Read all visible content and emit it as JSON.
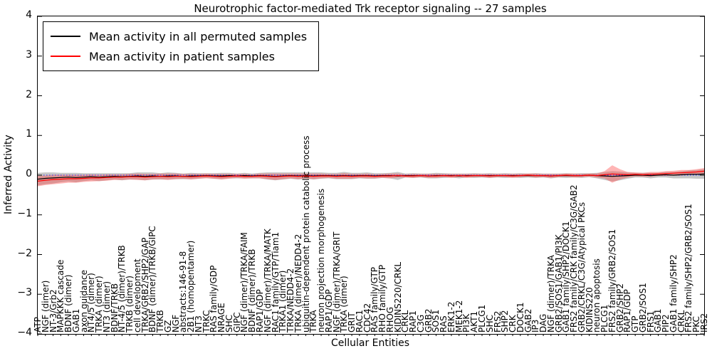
{
  "legend": {
    "entries": [
      {
        "label": "Mean activity in all permuted samples",
        "color": "#000000"
      },
      {
        "label": "Mean activity in patient samples",
        "color": "#ff0000"
      }
    ]
  },
  "chart_data": {
    "type": "line",
    "title": "Neurotrophic factor-mediated Trk receptor signaling -- 27 samples",
    "xlabel": "Cellular Entities",
    "ylabel": "Inferred Activity",
    "ylim": [
      -4,
      4
    ],
    "yticks": [
      4,
      3,
      2,
      1,
      0,
      -1,
      -2,
      -3,
      -4
    ],
    "yticklabels": [
      "4",
      "3",
      "2",
      "1",
      "0",
      "−1",
      "−2",
      "−3",
      "−4"
    ],
    "grid": false,
    "legend_position": "upper left",
    "zero_line": {
      "y": 0,
      "color": "#3333ff",
      "style": "dotted"
    },
    "categories": [
      "ATP",
      "NGF (dimer)",
      "NT-3/Grb2",
      "MAPKKK cascade",
      "BDNF (dimer)",
      "GAB1",
      "axon guidance",
      "NT4/5 (dimer)",
      "TRKA (dimer)",
      "NT3 (dimer)",
      "BDNF/TRKB",
      "NT-4/5 (dimer)/TRKB",
      "TRKB (dimer)",
      "cell development",
      "TRKA/GRB2/SHP2/GAP",
      "BDNF (dimer)/TRKB/GIPC",
      "TRKB",
      "GZ",
      "NGF",
      "abstracts:146-91-8",
      "2B1 (homopentamer)",
      "NT3",
      "TRKC",
      "RAS family/GDP",
      "NRAGE",
      "SHC",
      "GIPC",
      "NGF (dimer)/TRKA/FAIM",
      "BDNF (dimer)/TRKB",
      "RAP1/GDP",
      "NGF (dimer)/TRKA/MATK",
      "RAC1 family/GTP/Tiam1",
      "TRKA1 (dimer)",
      "TRKA/NEDD4-2",
      "TRKA (dimer)/NEDD4-2",
      "ubiquitin-dependent protein catabolic process",
      "TRKA",
      "neuron projection morphogenesis",
      "RAP1/GDP",
      "NGF (dimer)/TRKA/GRIT",
      "TRKA (dimer)",
      "GRIT",
      "RAC1",
      "CDC42",
      "RAS family/GTP",
      "RHO family/GTP",
      "RHOG",
      "KIDINS220/CRKL",
      "CRKL",
      "RAP1",
      "C3G",
      "GRB2",
      "SOS1",
      "RAS",
      "ERK1-2",
      "MEK1-2",
      "PI3K",
      "AKT1",
      "PLCG1",
      "SHC",
      "FRS2",
      "SHP2",
      "CRK",
      "DOCK1",
      "GAB2",
      "IP3",
      "DAG",
      "NGF (dimer)/TRKA",
      "GRB2/SOS1/GAB1/PI3K",
      "GAB1 family/SHP2/DOCK1",
      "FRS2 family/CRK family/C3G/GAB2",
      "GRB2/CRKL/C3G/Atypical PKCs",
      "KIDINS220",
      "neuron apoptosis",
      "PLCG1",
      "FRS2 family/GRB2/SOS1",
      "GRB2/SHP2",
      "RAP1/GDP",
      "GTP",
      "GRB2/SOS1",
      "FRS1",
      "GAB1",
      "PIP2",
      "GAB1 family/SHP2",
      "CRKL",
      "FRS2 family/SHP2/GRB2/SOS1",
      "PKC",
      "IRS2"
    ],
    "series": [
      {
        "name": "Mean activity in all permuted samples",
        "color": "#000000",
        "band_color": "rgba(128,128,128,0.45)",
        "values": [
          -0.1,
          -0.08,
          -0.07,
          -0.06,
          -0.05,
          -0.06,
          -0.05,
          -0.04,
          -0.05,
          -0.04,
          -0.03,
          -0.04,
          -0.03,
          -0.02,
          -0.03,
          -0.02,
          -0.03,
          -0.02,
          -0.02,
          -0.03,
          -0.02,
          -0.02,
          -0.01,
          -0.02,
          -0.02,
          -0.01,
          -0.02,
          -0.01,
          -0.02,
          -0.01,
          -0.02,
          -0.03,
          -0.02,
          -0.01,
          -0.02,
          -0.01,
          -0.02,
          -0.01,
          -0.01,
          -0.02,
          -0.01,
          -0.02,
          -0.01,
          -0.01,
          -0.02,
          -0.01,
          -0.01,
          -0.02,
          -0.01,
          -0.01,
          -0.01,
          -0.02,
          -0.01,
          -0.01,
          -0.01,
          -0.02,
          -0.01,
          -0.01,
          -0.01,
          -0.01,
          -0.01,
          -0.01,
          -0.01,
          -0.01,
          -0.01,
          -0.01,
          -0.01,
          -0.02,
          -0.01,
          -0.01,
          -0.01,
          -0.01,
          0.0,
          -0.01,
          -0.02,
          -0.03,
          -0.02,
          -0.01,
          0.0,
          0.0,
          -0.01,
          0.0,
          0.01,
          0.0,
          0.01,
          0.02,
          0.02,
          0.03
        ],
        "band_halfwidth": [
          0.16,
          0.15,
          0.14,
          0.12,
          0.11,
          0.12,
          0.1,
          0.09,
          0.1,
          0.09,
          0.08,
          0.09,
          0.08,
          0.09,
          0.1,
          0.09,
          0.08,
          0.09,
          0.08,
          0.07,
          0.08,
          0.07,
          0.06,
          0.07,
          0.08,
          0.07,
          0.06,
          0.07,
          0.06,
          0.07,
          0.09,
          0.1,
          0.09,
          0.08,
          0.09,
          0.08,
          0.09,
          0.08,
          0.07,
          0.08,
          0.09,
          0.08,
          0.07,
          0.08,
          0.07,
          0.06,
          0.07,
          0.1,
          0.05,
          0.06,
          0.05,
          0.06,
          0.07,
          0.06,
          0.05,
          0.06,
          0.05,
          0.06,
          0.05,
          0.06,
          0.05,
          0.06,
          0.05,
          0.06,
          0.05,
          0.06,
          0.05,
          0.06,
          0.05,
          0.06,
          0.05,
          0.06,
          0.05,
          0.07,
          0.1,
          0.13,
          0.11,
          0.08,
          0.06,
          0.06,
          0.07,
          0.06,
          0.07,
          0.08,
          0.09,
          0.1,
          0.11,
          0.12
        ]
      },
      {
        "name": "Mean activity in patient samples",
        "color": "#ff0000",
        "band_color": "rgba(255,70,70,0.40)",
        "values": [
          -0.15,
          -0.13,
          -0.11,
          -0.1,
          -0.09,
          -0.09,
          -0.08,
          -0.07,
          -0.07,
          -0.06,
          -0.05,
          -0.05,
          -0.04,
          -0.04,
          -0.05,
          -0.04,
          -0.03,
          -0.04,
          -0.03,
          -0.03,
          -0.04,
          -0.03,
          -0.02,
          -0.03,
          -0.04,
          -0.03,
          -0.02,
          -0.03,
          -0.03,
          -0.02,
          -0.03,
          -0.04,
          -0.03,
          -0.02,
          -0.03,
          -0.02,
          -0.03,
          -0.02,
          -0.02,
          -0.03,
          -0.02,
          -0.03,
          -0.02,
          -0.02,
          -0.03,
          -0.02,
          -0.02,
          -0.01,
          -0.02,
          -0.02,
          -0.01,
          -0.02,
          -0.02,
          -0.01,
          -0.02,
          -0.01,
          -0.02,
          -0.01,
          -0.01,
          -0.02,
          -0.01,
          -0.01,
          -0.02,
          -0.01,
          0.0,
          -0.01,
          -0.01,
          -0.02,
          -0.01,
          0.0,
          -0.01,
          -0.01,
          0.0,
          -0.01,
          0.01,
          0.03,
          0.02,
          0.01,
          0.02,
          0.01,
          0.02,
          0.03,
          0.04,
          0.05,
          0.06,
          0.07,
          0.08,
          0.1
        ],
        "band_halfwidth": [
          0.13,
          0.12,
          0.12,
          0.11,
          0.1,
          0.1,
          0.09,
          0.09,
          0.08,
          0.08,
          0.07,
          0.07,
          0.07,
          0.08,
          0.08,
          0.07,
          0.07,
          0.08,
          0.07,
          0.06,
          0.07,
          0.06,
          0.06,
          0.06,
          0.07,
          0.06,
          0.05,
          0.06,
          0.05,
          0.06,
          0.07,
          0.08,
          0.07,
          0.06,
          0.07,
          0.06,
          0.07,
          0.06,
          0.05,
          0.06,
          0.07,
          0.06,
          0.05,
          0.06,
          0.05,
          0.05,
          0.06,
          0.05,
          0.04,
          0.05,
          0.04,
          0.05,
          0.05,
          0.04,
          0.05,
          0.04,
          0.05,
          0.04,
          0.04,
          0.05,
          0.04,
          0.04,
          0.05,
          0.04,
          0.04,
          0.05,
          0.04,
          0.05,
          0.04,
          0.04,
          0.05,
          0.04,
          0.04,
          0.05,
          0.09,
          0.22,
          0.13,
          0.07,
          0.05,
          0.05,
          0.06,
          0.05,
          0.06,
          0.06,
          0.07,
          0.06,
          0.07,
          0.08
        ]
      }
    ]
  }
}
